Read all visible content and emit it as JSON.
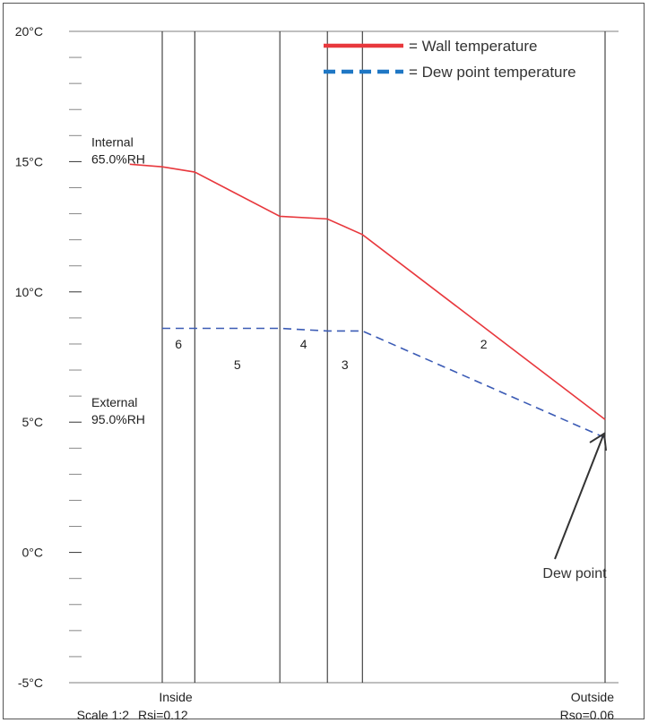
{
  "chart_data": {
    "type": "line",
    "ylim": [
      -5,
      20
    ],
    "y_ticks": [
      {
        "value": 20,
        "label": "20°C"
      },
      {
        "value": 15,
        "label": "15°C"
      },
      {
        "value": 10,
        "label": "10°C"
      },
      {
        "value": 5,
        "label": "5°C"
      },
      {
        "value": 0,
        "label": "0°C"
      },
      {
        "value": -5,
        "label": "-5°C"
      }
    ],
    "layer_boundaries_mm": [
      0,
      13,
      47,
      66,
      80,
      177
    ],
    "layers": [
      {
        "label": "6",
        "from": 0,
        "to": 13,
        "label_y": 8.0
      },
      {
        "label": "5",
        "from": 13,
        "to": 47,
        "label_y": 7.2
      },
      {
        "label": "4",
        "from": 47,
        "to": 66,
        "label_y": 8.0
      },
      {
        "label": "3",
        "from": 66,
        "to": 80,
        "label_y": 7.2
      },
      {
        "label": "2",
        "from": 80,
        "to": 177,
        "label_y": 8.0
      }
    ],
    "series": [
      {
        "name": "Wall temperature",
        "color": "#e8383d",
        "style": "solid",
        "points": [
          [
            -13,
            14.9
          ],
          [
            0,
            14.8
          ],
          [
            13,
            14.6
          ],
          [
            47,
            12.9
          ],
          [
            66,
            12.8
          ],
          [
            80,
            12.2
          ],
          [
            177,
            5.1
          ]
        ]
      },
      {
        "name": "Dew point temperature",
        "color": "#3b5bb5",
        "style": "dashed",
        "points": [
          [
            0,
            8.6
          ],
          [
            13,
            8.6
          ],
          [
            47,
            8.6
          ],
          [
            66,
            8.5
          ],
          [
            80,
            8.5
          ],
          [
            177,
            4.4
          ]
        ]
      }
    ],
    "legend": [
      {
        "label": "= Wall temperature",
        "color": "#e8383d",
        "style": "solid"
      },
      {
        "label": "= Dew point temperature",
        "color": "#1f77c4",
        "style": "dashed"
      }
    ],
    "legend_position": "top-right",
    "annotations": {
      "internal": {
        "line1": "Internal",
        "line2": "65.0%RH"
      },
      "external": {
        "line1": "External",
        "line2": "95.0%RH"
      },
      "dew_point": {
        "label": "Dew point",
        "x": 177,
        "y": 4.7
      }
    },
    "bottom_labels": {
      "inside": "Inside",
      "scale": "Scale 1:2",
      "rsi": "Rsi=0.12",
      "outside": "Outside",
      "rso": "Rso=0.06"
    }
  }
}
